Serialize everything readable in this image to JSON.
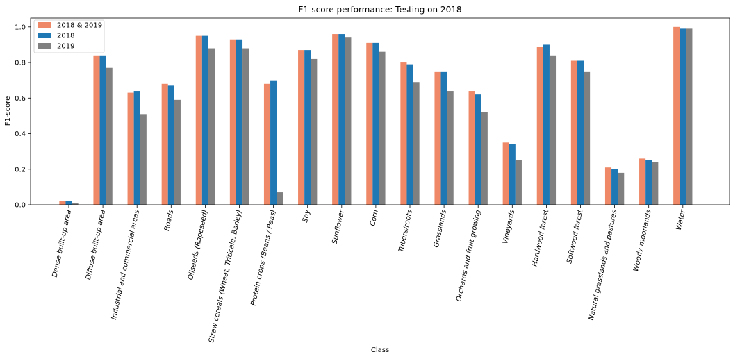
{
  "chart_data": {
    "type": "bar",
    "title": "F1-score performance: Testing on 2018",
    "xlabel": "Class",
    "ylabel": "F1-score",
    "ylim": [
      0,
      1.05
    ],
    "yticks": [
      "0.0",
      "0.2",
      "0.4",
      "0.6",
      "0.8",
      "1.0"
    ],
    "ytick_values": [
      0,
      0.2,
      0.4,
      0.6,
      0.8,
      1.0
    ],
    "legend_position": "top-left",
    "grid": false,
    "categories": [
      "Dense built-up area",
      "Diffuse built-up area",
      "Industrial and commercial areas",
      "Roads",
      "Oilseeds (Rapeseed)",
      "Straw cereals (Wheat, Triticale, Barley)",
      "Protein crops (Beans / Peas)",
      "Soy",
      "Sunflower",
      "Corn",
      "Tubers/roots",
      "Grasslands",
      "Orchards and fruit growing",
      "Vineyards",
      "Hardwood forest",
      "Softwood forest",
      "Natural grasslands and pastures",
      "Woody moorlands",
      "Water"
    ],
    "series": [
      {
        "name": "2018 & 2019",
        "color": "#ee8866",
        "values": [
          0.02,
          0.84,
          0.63,
          0.68,
          0.95,
          0.93,
          0.68,
          0.87,
          0.96,
          0.91,
          0.8,
          0.75,
          0.64,
          0.35,
          0.89,
          0.81,
          0.21,
          0.26,
          1.0
        ]
      },
      {
        "name": "2018",
        "color": "#1f77b4",
        "values": [
          0.02,
          0.84,
          0.64,
          0.67,
          0.95,
          0.93,
          0.7,
          0.87,
          0.96,
          0.91,
          0.79,
          0.75,
          0.62,
          0.34,
          0.9,
          0.81,
          0.2,
          0.25,
          0.99
        ]
      },
      {
        "name": "2019",
        "color": "#808080",
        "values": [
          0.01,
          0.77,
          0.51,
          0.59,
          0.88,
          0.88,
          0.07,
          0.82,
          0.94,
          0.86,
          0.69,
          0.64,
          0.52,
          0.25,
          0.84,
          0.75,
          0.18,
          0.24,
          0.99
        ]
      }
    ]
  }
}
